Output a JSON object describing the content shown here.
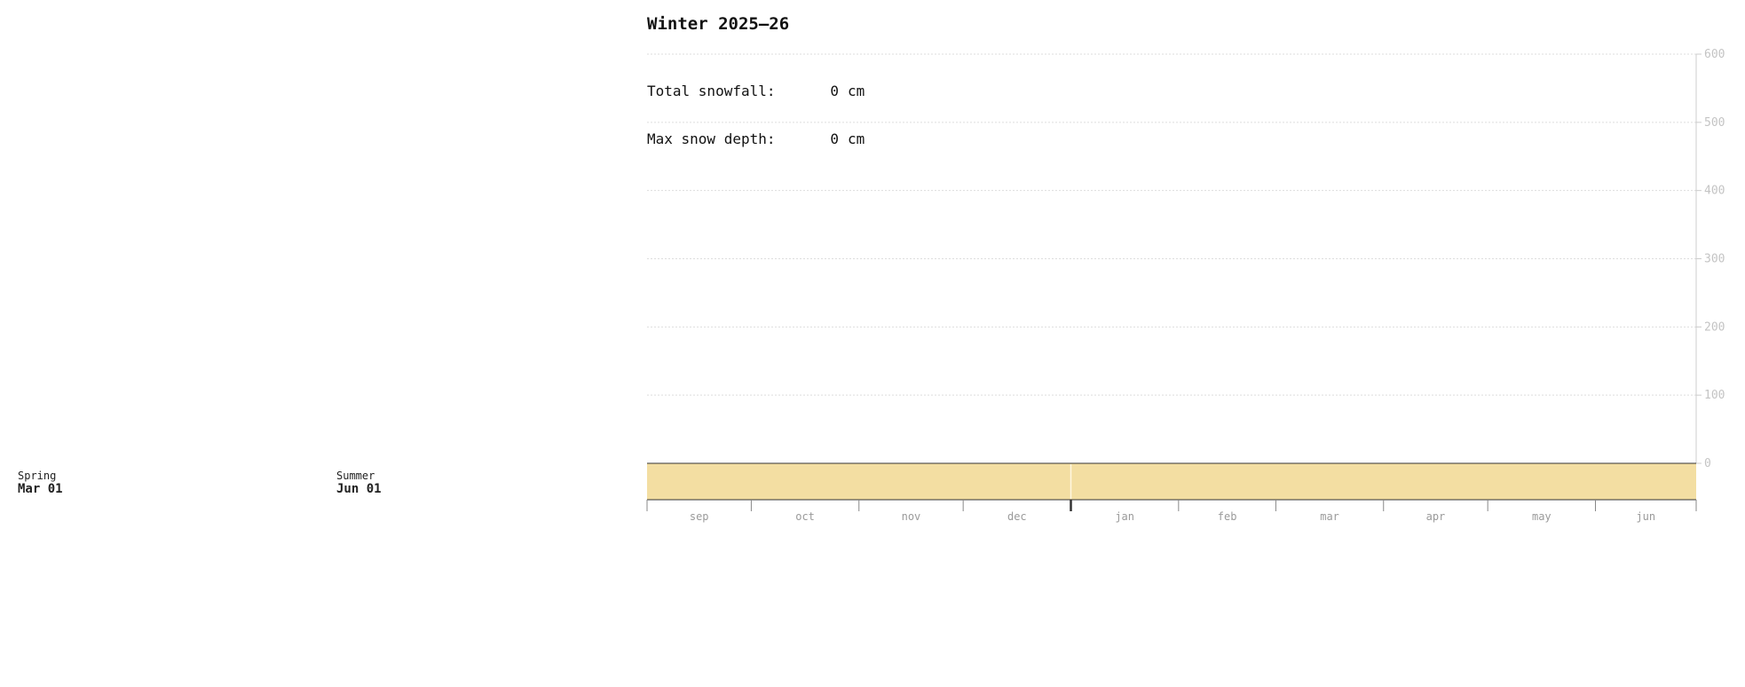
{
  "header": {
    "title": "Winter 2025–26"
  },
  "stats": {
    "total_snowfall_label": "Total snowfall:",
    "total_snowfall_value": "0",
    "total_snowfall_unit": "cm",
    "max_depth_label": "Max snow depth:",
    "max_depth_value": "0",
    "max_depth_unit": "cm"
  },
  "seasons": {
    "spring": {
      "name": "Spring",
      "date": "Mar 01"
    },
    "summer": {
      "name": "Summer",
      "date": "Jun 01"
    }
  },
  "colors": {
    "ground_band": "#f3dea2",
    "grid": "#dddddd",
    "axis": "#cccccc"
  },
  "chart_data": {
    "type": "area",
    "title": "Winter 2025–26",
    "xlabel": "",
    "ylabel": "",
    "ylim": [
      0,
      600
    ],
    "yticks": [
      0,
      100,
      200,
      300,
      400,
      500,
      600
    ],
    "x_start": "2025-09-01",
    "x_end": "2026-06-30",
    "x_months": [
      {
        "label": "sep",
        "start": "2025-09-01",
        "end": "2025-10-01"
      },
      {
        "label": "oct",
        "start": "2025-10-01",
        "end": "2025-11-01"
      },
      {
        "label": "nov",
        "start": "2025-11-01",
        "end": "2025-12-01"
      },
      {
        "label": "dec",
        "start": "2025-12-01",
        "end": "2026-01-01"
      },
      {
        "label": "jan",
        "start": "2026-01-01",
        "end": "2026-02-01"
      },
      {
        "label": "feb",
        "start": "2026-02-01",
        "end": "2026-03-01"
      },
      {
        "label": "mar",
        "start": "2026-03-01",
        "end": "2026-04-01"
      },
      {
        "label": "apr",
        "start": "2026-04-01",
        "end": "2026-05-01"
      },
      {
        "label": "may",
        "start": "2026-05-01",
        "end": "2026-06-01"
      },
      {
        "label": "jun",
        "start": "2026-06-01",
        "end": "2026-07-01"
      }
    ],
    "series": [
      {
        "name": "",
        "values": [
          0,
          0,
          0,
          0,
          0,
          0,
          0,
          0,
          0,
          0
        ]
      }
    ],
    "grid": true,
    "y_axis_side": "right",
    "current_date_marker": "2026-01-01"
  }
}
